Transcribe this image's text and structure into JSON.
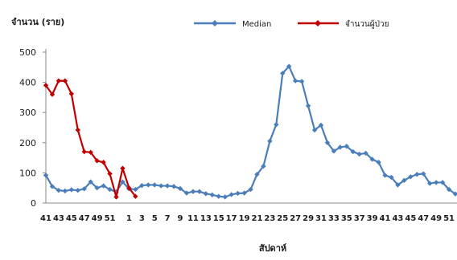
{
  "chart_data": {
    "type": "line",
    "title": "",
    "ylabel": "จำนวน (ราย)",
    "xlabel": "สัปดาห์",
    "ylim": [
      0,
      500
    ],
    "yticks": [
      0,
      100,
      200,
      300,
      400,
      500
    ],
    "grid": false,
    "legend_position": "top-right",
    "x_labels": [
      "41",
      "",
      "43",
      "",
      "45",
      "",
      "47",
      "",
      "49",
      "",
      "51",
      "",
      "",
      "1",
      "",
      "3",
      "",
      "5",
      "",
      "7",
      "",
      "9",
      "",
      "11",
      "",
      "13",
      "",
      "15",
      "",
      "17",
      "",
      "19",
      "",
      "21",
      "",
      "23",
      "",
      "25",
      "",
      "27",
      "",
      "29",
      "",
      "31",
      "",
      "33",
      "",
      "35",
      "",
      "37",
      "",
      "39",
      "",
      "41",
      "",
      "43",
      "",
      "45",
      "",
      "47",
      "",
      "49",
      "",
      "51",
      ""
    ],
    "series": [
      {
        "name": "Median",
        "color": "#4a7ebb",
        "marker": "diamond",
        "values": [
          92,
          55,
          42,
          40,
          44,
          42,
          47,
          70,
          50,
          57,
          45,
          37,
          70,
          47,
          45,
          58,
          60,
          60,
          57,
          57,
          55,
          48,
          33,
          38,
          38,
          31,
          27,
          22,
          20,
          28,
          32,
          33,
          45,
          95,
          122,
          205,
          260,
          430,
          453,
          405,
          403,
          322,
          242,
          258,
          200,
          172,
          185,
          188,
          170,
          162,
          165,
          145,
          135,
          92,
          85,
          60,
          75,
          87,
          95,
          97,
          65,
          68,
          68,
          45,
          30
        ]
      },
      {
        "name": "จำนวนผู้ป่วย",
        "color": "#c00000",
        "marker": "diamond",
        "values": [
          390,
          360,
          405,
          405,
          362,
          242,
          170,
          168,
          140,
          135,
          97,
          20,
          115,
          50,
          22
        ]
      }
    ]
  }
}
